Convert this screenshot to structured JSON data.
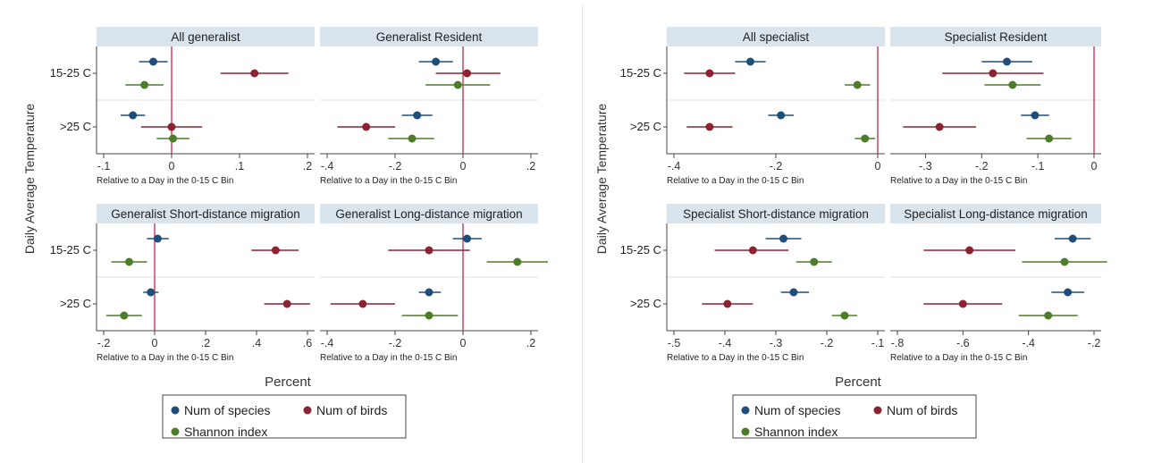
{
  "colors": {
    "num_species": "#1f4e79",
    "num_birds": "#8b2330",
    "shannon": "#4e7d2a",
    "zero_line": "#c9365a",
    "facet_header": "#d9e4ec",
    "plot_bg": "#ffffff",
    "row_band": "#f0f0f0"
  },
  "figures": [
    {
      "ylabel": "Daily Average Temperature",
      "xlabel": "Percent",
      "legend": [
        {
          "label": "Num of species",
          "series": "num_species"
        },
        {
          "label": "Num of birds",
          "series": "num_birds"
        },
        {
          "label": "Shannon index",
          "series": "shannon"
        }
      ]
    },
    {
      "ylabel": "Daily Average Temperature",
      "xlabel": "Percent",
      "legend": [
        {
          "label": "Num of species",
          "series": "num_species"
        },
        {
          "label": "Num of birds",
          "series": "num_birds"
        },
        {
          "label": "Shannon index",
          "series": "shannon"
        }
      ]
    }
  ],
  "chart_data": [
    {
      "type": "scatter",
      "title": "All generalist",
      "xlabel": "Relative to a Day in the 0-15 C Bin",
      "xlim": [
        -0.1,
        0.2
      ],
      "ticks": [
        -0.1,
        0,
        0.1,
        0.2
      ],
      "tick_labels": [
        "-.1",
        "0",
        ".1",
        ".2"
      ],
      "categories": [
        "15-25 C",
        ">25 C"
      ],
      "series": [
        {
          "name": "Num of species",
          "key": "num_species",
          "points": [
            {
              "cat": "15-25 C",
              "est": -0.027,
              "lo": -0.048,
              "hi": -0.006
            },
            {
              "cat": ">25 C",
              "est": -0.057,
              "lo": -0.075,
              "hi": -0.039
            }
          ]
        },
        {
          "name": "Num of birds",
          "key": "num_birds",
          "points": [
            {
              "cat": "15-25 C",
              "est": 0.122,
              "lo": 0.072,
              "hi": 0.172
            },
            {
              "cat": ">25 C",
              "est": 0.0,
              "lo": -0.045,
              "hi": 0.045
            }
          ]
        },
        {
          "name": "Shannon index",
          "key": "shannon",
          "points": [
            {
              "cat": "15-25 C",
              "est": -0.04,
              "lo": -0.068,
              "hi": -0.012
            },
            {
              "cat": ">25 C",
              "est": 0.002,
              "lo": -0.022,
              "hi": 0.026
            }
          ]
        }
      ]
    },
    {
      "type": "scatter",
      "title": "Generalist Resident",
      "xlabel": "Relative to a Day in the 0-15 C Bin",
      "xlim": [
        -0.4,
        0.2
      ],
      "ticks": [
        -0.4,
        -0.2,
        0,
        0.2
      ],
      "tick_labels": [
        "-.4",
        "-.2",
        "0",
        ".2"
      ],
      "categories": [
        "15-25 C",
        ">25 C"
      ],
      "series": [
        {
          "name": "Num of species",
          "key": "num_species",
          "points": [
            {
              "cat": "15-25 C",
              "est": -0.08,
              "lo": -0.13,
              "hi": -0.03
            },
            {
              "cat": ">25 C",
              "est": -0.135,
              "lo": -0.18,
              "hi": -0.09
            }
          ]
        },
        {
          "name": "Num of birds",
          "key": "num_birds",
          "points": [
            {
              "cat": "15-25 C",
              "est": 0.012,
              "lo": -0.08,
              "hi": 0.11
            },
            {
              "cat": ">25 C",
              "est": -0.285,
              "lo": -0.37,
              "hi": -0.2
            }
          ]
        },
        {
          "name": "Shannon index",
          "key": "shannon",
          "points": [
            {
              "cat": "15-25 C",
              "est": -0.015,
              "lo": -0.11,
              "hi": 0.08
            },
            {
              "cat": ">25 C",
              "est": -0.15,
              "lo": -0.22,
              "hi": -0.085
            }
          ]
        }
      ]
    },
    {
      "type": "scatter",
      "title": "Generalist Short-distance migration",
      "xlabel": "Relative to a Day in the 0-15 C Bin",
      "xlim": [
        -0.2,
        0.6
      ],
      "ticks": [
        -0.2,
        0,
        0.2,
        0.4,
        0.6
      ],
      "tick_labels": [
        "-.2",
        "0",
        ".2",
        ".4",
        ".6"
      ],
      "categories": [
        "15-25 C",
        ">25 C"
      ],
      "series": [
        {
          "name": "Num of species",
          "key": "num_species",
          "points": [
            {
              "cat": "15-25 C",
              "est": 0.012,
              "lo": -0.03,
              "hi": 0.055
            },
            {
              "cat": ">25 C",
              "est": -0.015,
              "lo": -0.045,
              "hi": 0.015
            }
          ]
        },
        {
          "name": "Num of birds",
          "key": "num_birds",
          "points": [
            {
              "cat": "15-25 C",
              "est": 0.475,
              "lo": 0.38,
              "hi": 0.565
            },
            {
              "cat": ">25 C",
              "est": 0.52,
              "lo": 0.43,
              "hi": 0.61
            }
          ]
        },
        {
          "name": "Shannon index",
          "key": "shannon",
          "points": [
            {
              "cat": "15-25 C",
              "est": -0.1,
              "lo": -0.17,
              "hi": -0.03
            },
            {
              "cat": ">25 C",
              "est": -0.12,
              "lo": -0.19,
              "hi": -0.05
            }
          ]
        }
      ]
    },
    {
      "type": "scatter",
      "title": "Generalist Long-distance migration",
      "xlabel": "Relative to a Day in the 0-15 C Bin",
      "xlim": [
        -0.4,
        0.2
      ],
      "ticks": [
        -0.4,
        -0.2,
        0,
        0.2
      ],
      "tick_labels": [
        "-.4",
        "-.2",
        "0",
        ".2"
      ],
      "categories": [
        "15-25 C",
        ">25 C"
      ],
      "series": [
        {
          "name": "Num of species",
          "key": "num_species",
          "points": [
            {
              "cat": "15-25 C",
              "est": 0.012,
              "lo": -0.03,
              "hi": 0.055
            },
            {
              "cat": ">25 C",
              "est": -0.1,
              "lo": -0.13,
              "hi": -0.065
            }
          ]
        },
        {
          "name": "Num of birds",
          "key": "num_birds",
          "points": [
            {
              "cat": "15-25 C",
              "est": -0.1,
              "lo": -0.22,
              "hi": 0.02
            },
            {
              "cat": ">25 C",
              "est": -0.295,
              "lo": -0.39,
              "hi": -0.2
            }
          ]
        },
        {
          "name": "Shannon index",
          "key": "shannon",
          "points": [
            {
              "cat": "15-25 C",
              "est": 0.16,
              "lo": 0.07,
              "hi": 0.25
            },
            {
              "cat": ">25 C",
              "est": -0.1,
              "lo": -0.18,
              "hi": -0.015
            }
          ]
        }
      ]
    },
    {
      "type": "scatter",
      "title": "All specialist",
      "xlabel": "Relative to a Day in the 0-15 C Bin",
      "xlim": [
        -0.4,
        0
      ],
      "ticks": [
        -0.4,
        -0.2,
        0
      ],
      "tick_labels": [
        "-.4",
        "-.2",
        "0"
      ],
      "categories": [
        "15-25 C",
        ">25 C"
      ],
      "series": [
        {
          "name": "Num of species",
          "key": "num_species",
          "points": [
            {
              "cat": "15-25 C",
              "est": -0.25,
              "lo": -0.28,
              "hi": -0.22
            },
            {
              "cat": ">25 C",
              "est": -0.19,
              "lo": -0.215,
              "hi": -0.165
            }
          ]
        },
        {
          "name": "Num of birds",
          "key": "num_birds",
          "points": [
            {
              "cat": "15-25 C",
              "est": -0.33,
              "lo": -0.38,
              "hi": -0.28
            },
            {
              "cat": ">25 C",
              "est": -0.33,
              "lo": -0.375,
              "hi": -0.285
            }
          ]
        },
        {
          "name": "Shannon index",
          "key": "shannon",
          "points": [
            {
              "cat": "15-25 C",
              "est": -0.04,
              "lo": -0.065,
              "hi": -0.015
            },
            {
              "cat": ">25 C",
              "est": -0.025,
              "lo": -0.045,
              "hi": -0.005
            }
          ]
        }
      ]
    },
    {
      "type": "scatter",
      "title": "Specialist Resident",
      "xlabel": "Relative to a Day in the 0-15 C Bin",
      "xlim": [
        -0.35,
        0
      ],
      "ticks": [
        -0.3,
        -0.2,
        -0.1,
        0
      ],
      "tick_labels": [
        "-.3",
        "-.2",
        "-.1",
        "0"
      ],
      "categories": [
        "15-25 C",
        ">25 C"
      ],
      "series": [
        {
          "name": "Num of species",
          "key": "num_species",
          "points": [
            {
              "cat": "15-25 C",
              "est": -0.155,
              "lo": -0.2,
              "hi": -0.11
            },
            {
              "cat": ">25 C",
              "est": -0.105,
              "lo": -0.13,
              "hi": -0.08
            }
          ]
        },
        {
          "name": "Num of birds",
          "key": "num_birds",
          "points": [
            {
              "cat": "15-25 C",
              "est": -0.18,
              "lo": -0.27,
              "hi": -0.09
            },
            {
              "cat": ">25 C",
              "est": -0.275,
              "lo": -0.34,
              "hi": -0.21
            }
          ]
        },
        {
          "name": "Shannon index",
          "key": "shannon",
          "points": [
            {
              "cat": "15-25 C",
              "est": -0.145,
              "lo": -0.195,
              "hi": -0.095
            },
            {
              "cat": ">25 C",
              "est": -0.08,
              "lo": -0.12,
              "hi": -0.04
            }
          ]
        }
      ]
    },
    {
      "type": "scatter",
      "title": "Specialist Short-distance migration",
      "xlabel": "Relative to a Day in the 0-15 C Bin",
      "xlim": [
        -0.5,
        -0.1
      ],
      "ticks": [
        -0.5,
        -0.4,
        -0.3,
        -0.2,
        -0.1
      ],
      "tick_labels": [
        "-.5",
        "-.4",
        "-.3",
        "-.2",
        "-.1"
      ],
      "categories": [
        "15-25 C",
        ">25 C"
      ],
      "series": [
        {
          "name": "Num of species",
          "key": "num_species",
          "points": [
            {
              "cat": "15-25 C",
              "est": -0.285,
              "lo": -0.32,
              "hi": -0.25
            },
            {
              "cat": ">25 C",
              "est": -0.265,
              "lo": -0.29,
              "hi": -0.235
            }
          ]
        },
        {
          "name": "Num of birds",
          "key": "num_birds",
          "points": [
            {
              "cat": "15-25 C",
              "est": -0.345,
              "lo": -0.42,
              "hi": -0.275
            },
            {
              "cat": ">25 C",
              "est": -0.395,
              "lo": -0.445,
              "hi": -0.345
            }
          ]
        },
        {
          "name": "Shannon index",
          "key": "shannon",
          "points": [
            {
              "cat": "15-25 C",
              "est": -0.225,
              "lo": -0.26,
              "hi": -0.19
            },
            {
              "cat": ">25 C",
              "est": -0.165,
              "lo": -0.19,
              "hi": -0.14
            }
          ]
        }
      ]
    },
    {
      "type": "scatter",
      "title": "Specialist Long-distance migration",
      "xlabel": "Relative to a Day in the 0-15 C Bin",
      "xlim": [
        -0.8,
        -0.2
      ],
      "ticks": [
        -0.8,
        -0.6,
        -0.4,
        -0.2
      ],
      "tick_labels": [
        "-.8",
        "-.6",
        "-.4",
        "-.2"
      ],
      "categories": [
        "15-25 C",
        ">25 C"
      ],
      "series": [
        {
          "name": "Num of species",
          "key": "num_species",
          "points": [
            {
              "cat": "15-25 C",
              "est": -0.265,
              "lo": -0.32,
              "hi": -0.21
            },
            {
              "cat": ">25 C",
              "est": -0.28,
              "lo": -0.33,
              "hi": -0.23
            }
          ]
        },
        {
          "name": "Num of birds",
          "key": "num_birds",
          "points": [
            {
              "cat": "15-25 C",
              "est": -0.58,
              "lo": -0.72,
              "hi": -0.44
            },
            {
              "cat": ">25 C",
              "est": -0.6,
              "lo": -0.72,
              "hi": -0.48
            }
          ]
        },
        {
          "name": "Shannon index",
          "key": "shannon",
          "points": [
            {
              "cat": "15-25 C",
              "est": -0.29,
              "lo": -0.42,
              "hi": -0.16
            },
            {
              "cat": ">25 C",
              "est": -0.34,
              "lo": -0.43,
              "hi": -0.25
            }
          ]
        }
      ]
    }
  ]
}
